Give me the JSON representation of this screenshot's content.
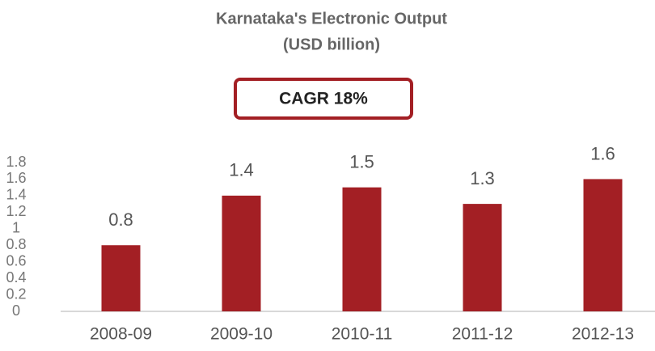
{
  "chart_data": {
    "type": "bar",
    "title": "Karnataka's Electronic Output",
    "subtitle": "(USD billion)",
    "annotation": "CAGR 18%",
    "categories": [
      "2008-09",
      "2009-10",
      "2010-11",
      "2011-12",
      "2012-13"
    ],
    "values": [
      0.8,
      1.4,
      1.5,
      1.3,
      1.6
    ],
    "color": "#a31f24",
    "ylim": [
      0,
      1.8
    ],
    "yticks": [
      0,
      0.2,
      0.4,
      0.6,
      0.8,
      1,
      1.2,
      1.4,
      1.6,
      1.8
    ],
    "grid": false
  }
}
